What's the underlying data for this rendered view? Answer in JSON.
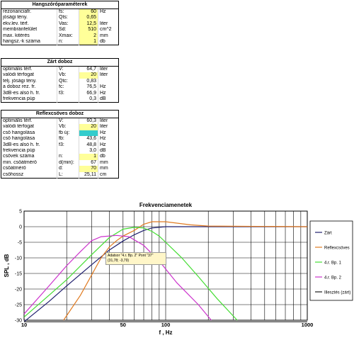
{
  "tables": [
    {
      "title": "Hangszóróparaméterek",
      "rows": [
        {
          "label": "rezonanciafr.",
          "sym": "fs:",
          "value": "60",
          "unit": "Hz",
          "hl": "yel"
        },
        {
          "label": "jósági tény.",
          "sym": "Qts:",
          "value": "0,65",
          "unit": "",
          "hl": "yel"
        },
        {
          "label": "ekv.lev. térf.",
          "sym": "Vas:",
          "value": "12,5",
          "unit": "liter",
          "hl": "yel"
        },
        {
          "label": "membránfelület",
          "sym": "Sd:",
          "value": "510",
          "unit": "cm^2",
          "hl": "yel"
        },
        {
          "label": "max. kitérés",
          "sym": "Xmax:",
          "value": "2",
          "unit": "mm",
          "hl": "yel"
        },
        {
          "label": "hangsz.-k száma",
          "sym": "n:",
          "value": "1",
          "unit": "db",
          "hl": "yel"
        }
      ]
    },
    {
      "title": "Zárt doboz",
      "rows": [
        {
          "label": "optimális térf.",
          "sym": "V:",
          "value": "64,7",
          "unit": "liter",
          "hl": ""
        },
        {
          "label": "valódi térfogat",
          "sym": "Vb:",
          "value": "20",
          "unit": "liter",
          "hl": "yel"
        },
        {
          "label": "telj. jósági tény.",
          "sym": "Qtc:",
          "value": "0,83",
          "unit": "",
          "hl": ""
        },
        {
          "label": "a doboz rez. fr.",
          "sym": "fc:",
          "value": "76,5",
          "unit": "Hz",
          "hl": ""
        },
        {
          "label": "3dB-es alsó h. fr.",
          "sym": "f3:",
          "value": "66,9",
          "unit": "Hz",
          "hl": ""
        },
        {
          "label": "frekvencia púp",
          "sym": "",
          "value": "0,3",
          "unit": "dB",
          "hl": ""
        }
      ]
    },
    {
      "title": "Reflexcsöves doboz",
      "rows": [
        {
          "label": "optimális térf.",
          "sym": "V:",
          "value": "60,3",
          "unit": "liter",
          "hl": ""
        },
        {
          "label": "valódi térfogat",
          "sym": "Vb:",
          "value": "20",
          "unit": "liter",
          "hl": "yel"
        },
        {
          "label": "cső hangolása",
          "sym": "fb új:",
          "value": "",
          "unit": "Hz",
          "hl": "cyan"
        },
        {
          "label": "cső hangolása",
          "sym": "fb:",
          "value": "43,6",
          "unit": "Hz",
          "hl": ""
        },
        {
          "label": "3dB-es alsó h. fr.",
          "sym": "f3:",
          "value": "48,8",
          "unit": "Hz",
          "hl": ""
        },
        {
          "label": "frekvencia púp",
          "sym": "",
          "value": "3,0",
          "unit": "dB",
          "hl": ""
        },
        {
          "label": "csövek száma",
          "sym": "n:",
          "value": "1",
          "unit": "db",
          "hl": "yel"
        },
        {
          "label": "min. csőátmérő",
          "sym": "d(min):",
          "value": "67",
          "unit": "mm",
          "hl": ""
        },
        {
          "label": "csőátmérő",
          "sym": "d:",
          "value": "70",
          "unit": "mm",
          "hl": "yel"
        },
        {
          "label": "csőhossz",
          "sym": "L:",
          "value": "25,11",
          "unit": "cm",
          "hl": ""
        }
      ]
    }
  ],
  "tooltip": {
    "line1": "Adatsor \"4.r. Bp. 2\" Pont \"37\"",
    "line2": "(31,78; -3,79)"
  },
  "chart_data": {
    "type": "line",
    "title": "Frekvenciamenetek",
    "xlabel": "f , Hz",
    "ylabel": "SPL , dB",
    "xscale": "log",
    "xlim": [
      10,
      1000
    ],
    "ylim": [
      -30,
      5
    ],
    "xticks": [
      10,
      50,
      100,
      1000
    ],
    "yticks": [
      5,
      0,
      -5,
      -10,
      -15,
      -20,
      -25,
      -30
    ],
    "grid": true,
    "legend": "right",
    "series": [
      {
        "name": "Zárt",
        "color": "#1f1f6e",
        "points": [
          [
            10,
            -30.5
          ],
          [
            15,
            -24
          ],
          [
            20,
            -19
          ],
          [
            30,
            -12.2
          ],
          [
            40,
            -7.5
          ],
          [
            50,
            -4.6
          ],
          [
            60,
            -2.6
          ],
          [
            70,
            -1.2
          ],
          [
            80,
            -0.4
          ],
          [
            100,
            0
          ],
          [
            200,
            0
          ],
          [
            1000,
            0
          ]
        ]
      },
      {
        "name": "Reflexcsöves",
        "color": "#e07a20",
        "points": [
          [
            19,
            -30
          ],
          [
            25,
            -22
          ],
          [
            30,
            -15.5
          ],
          [
            35,
            -10
          ],
          [
            40,
            -6.5
          ],
          [
            45,
            -4.5
          ],
          [
            50,
            -3
          ],
          [
            60,
            -1.2
          ],
          [
            70,
            0.8
          ],
          [
            80,
            1.6
          ],
          [
            100,
            1.6
          ],
          [
            150,
            0.6
          ],
          [
            200,
            0.2
          ],
          [
            1000,
            0
          ]
        ]
      },
      {
        "name": "4.r. Bp. 1",
        "color": "#44dd33",
        "points": [
          [
            10,
            -29
          ],
          [
            15,
            -22
          ],
          [
            20,
            -17
          ],
          [
            30,
            -9
          ],
          [
            40,
            -3.5
          ],
          [
            50,
            -0.8
          ],
          [
            60,
            -0.2
          ],
          [
            70,
            -0.4
          ],
          [
            80,
            -1.5
          ],
          [
            90,
            -3
          ],
          [
            100,
            -5
          ],
          [
            130,
            -10
          ],
          [
            170,
            -16
          ],
          [
            230,
            -23
          ],
          [
            320,
            -30
          ]
        ]
      },
      {
        "name": "4.r. Bp. 2",
        "color": "#cc33cc",
        "points": [
          [
            10,
            -28
          ],
          [
            15,
            -19
          ],
          [
            20,
            -12.5
          ],
          [
            25,
            -8
          ],
          [
            30,
            -4.5
          ],
          [
            35,
            -3.2
          ],
          [
            45,
            -2.8
          ],
          [
            55,
            -3.2
          ],
          [
            70,
            -6
          ],
          [
            90,
            -11
          ],
          [
            120,
            -18
          ],
          [
            170,
            -25
          ],
          [
            210,
            -30
          ]
        ]
      },
      {
        "name": "Illesztés (zárt)",
        "color": "#1a1a1a",
        "points": [
          [
            10,
            -30.5
          ],
          [
            1000,
            -30.5
          ]
        ]
      }
    ]
  }
}
